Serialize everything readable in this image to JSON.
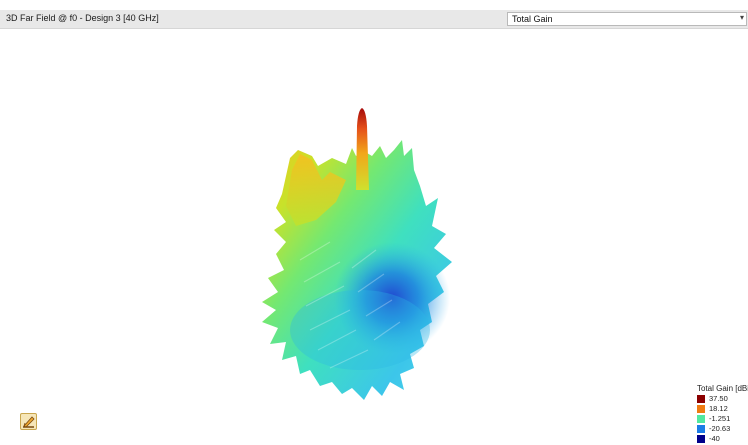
{
  "header": {
    "title": "3D Far Field @ f0 - Design 3 [40 GHz]",
    "quantity_select": {
      "value": "Total Gain",
      "icon": "chevron-down-icon"
    }
  },
  "legend": {
    "title": "Total Gain [dBi]",
    "entries": [
      {
        "label": "37.50",
        "color": "#8b0000"
      },
      {
        "label": "18.12",
        "color": "#f07b12"
      },
      {
        "label": "-1.251",
        "color": "#52e9a0"
      },
      {
        "label": "-20.63",
        "color": "#1c7de6"
      },
      {
        "label": "-40",
        "color": "#00008b"
      }
    ]
  },
  "toolbar": {
    "tool_icon": "edit-orientation-icon"
  }
}
